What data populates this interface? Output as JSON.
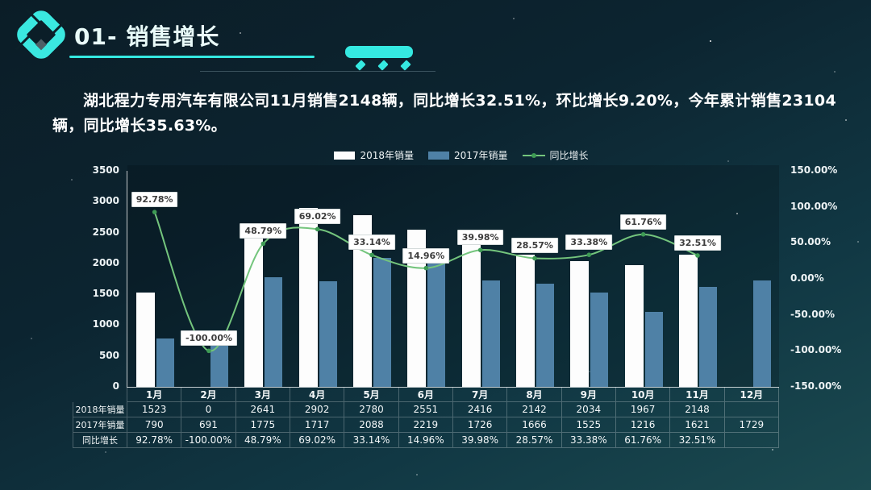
{
  "header": {
    "title": "01- 销售增长"
  },
  "summary": {
    "line1": "湖北程力专用汽车有限公司11月销售2148辆，同比增长32.51%，环比增长9.20%，今年累计销售23104",
    "line2": "辆，同比增长35.63%。"
  },
  "chart_data": {
    "type": "combo bar+line",
    "title": "",
    "categories": [
      "1月",
      "2月",
      "3月",
      "4月",
      "5月",
      "6月",
      "7月",
      "8月",
      "9月",
      "10月",
      "11月",
      "12月"
    ],
    "series": [
      {
        "name": "2018年销量",
        "chart": "bar",
        "axis": "left",
        "color": "#fdfdfd",
        "values": [
          1523,
          0,
          2641,
          2902,
          2780,
          2551,
          2416,
          2142,
          2034,
          1967,
          2148,
          null
        ]
      },
      {
        "name": "2017年销量",
        "chart": "bar",
        "axis": "left",
        "color": "#4f81a6",
        "values": [
          790,
          691,
          1775,
          1717,
          2088,
          2219,
          1726,
          1666,
          1525,
          1216,
          1621,
          1729
        ]
      },
      {
        "name": "同比增长",
        "chart": "line",
        "axis": "right",
        "color": "#74c57d",
        "point_color": "#3e9b55",
        "values": [
          92.78,
          -100.0,
          48.79,
          69.02,
          33.14,
          14.96,
          39.98,
          28.57,
          33.38,
          61.76,
          32.51,
          null
        ],
        "point_labels": [
          "92.78%",
          "-100.00%",
          "48.79%",
          "69.02%",
          "33.14%",
          "14.96%",
          "39.98%",
          "28.57%",
          "33.38%",
          "61.76%",
          "32.51%",
          ""
        ]
      }
    ],
    "left_axis": {
      "min": 0,
      "max": 3500,
      "step": 500,
      "ticks": [
        "3500",
        "3000",
        "2500",
        "2000",
        "1500",
        "1000",
        "500",
        "0"
      ]
    },
    "right_axis": {
      "min": -150,
      "max": 150,
      "step": 50,
      "ticks": [
        "150.00%",
        "100.00%",
        "50.00%",
        "0.00%",
        "-50.00%",
        "-100.00%",
        "-150.00%"
      ]
    },
    "legend": {
      "position": "top",
      "entries": [
        "2018年销量",
        "2017年销量",
        "同比增长"
      ]
    },
    "grid": false
  },
  "table": {
    "corner": "",
    "columns": [
      "1月",
      "2月",
      "3月",
      "4月",
      "5月",
      "6月",
      "7月",
      "8月",
      "9月",
      "10月",
      "11月",
      "12月"
    ],
    "rows": [
      {
        "label": "2018年销量",
        "cells": [
          "1523",
          "0",
          "2641",
          "2902",
          "2780",
          "2551",
          "2416",
          "2142",
          "2034",
          "1967",
          "2148",
          ""
        ]
      },
      {
        "label": "2017年销量",
        "cells": [
          "790",
          "691",
          "1775",
          "1717",
          "2088",
          "2219",
          "1726",
          "1666",
          "1525",
          "1216",
          "1621",
          "1729"
        ]
      },
      {
        "label": "同比增长",
        "cells": [
          "92.78%",
          "-100.00%",
          "48.79%",
          "69.02%",
          "33.14%",
          "14.96%",
          "39.98%",
          "28.57%",
          "33.38%",
          "61.76%",
          "32.51%",
          ""
        ]
      }
    ]
  },
  "colors": {
    "accent_cyan": "#35e9e1",
    "bar_2018": "#fdfdfd",
    "bar_2017": "#4f81a6",
    "growth_line": "#74c57d",
    "background_dark": "#0b1d27",
    "background_teal": "#1b4a50"
  }
}
